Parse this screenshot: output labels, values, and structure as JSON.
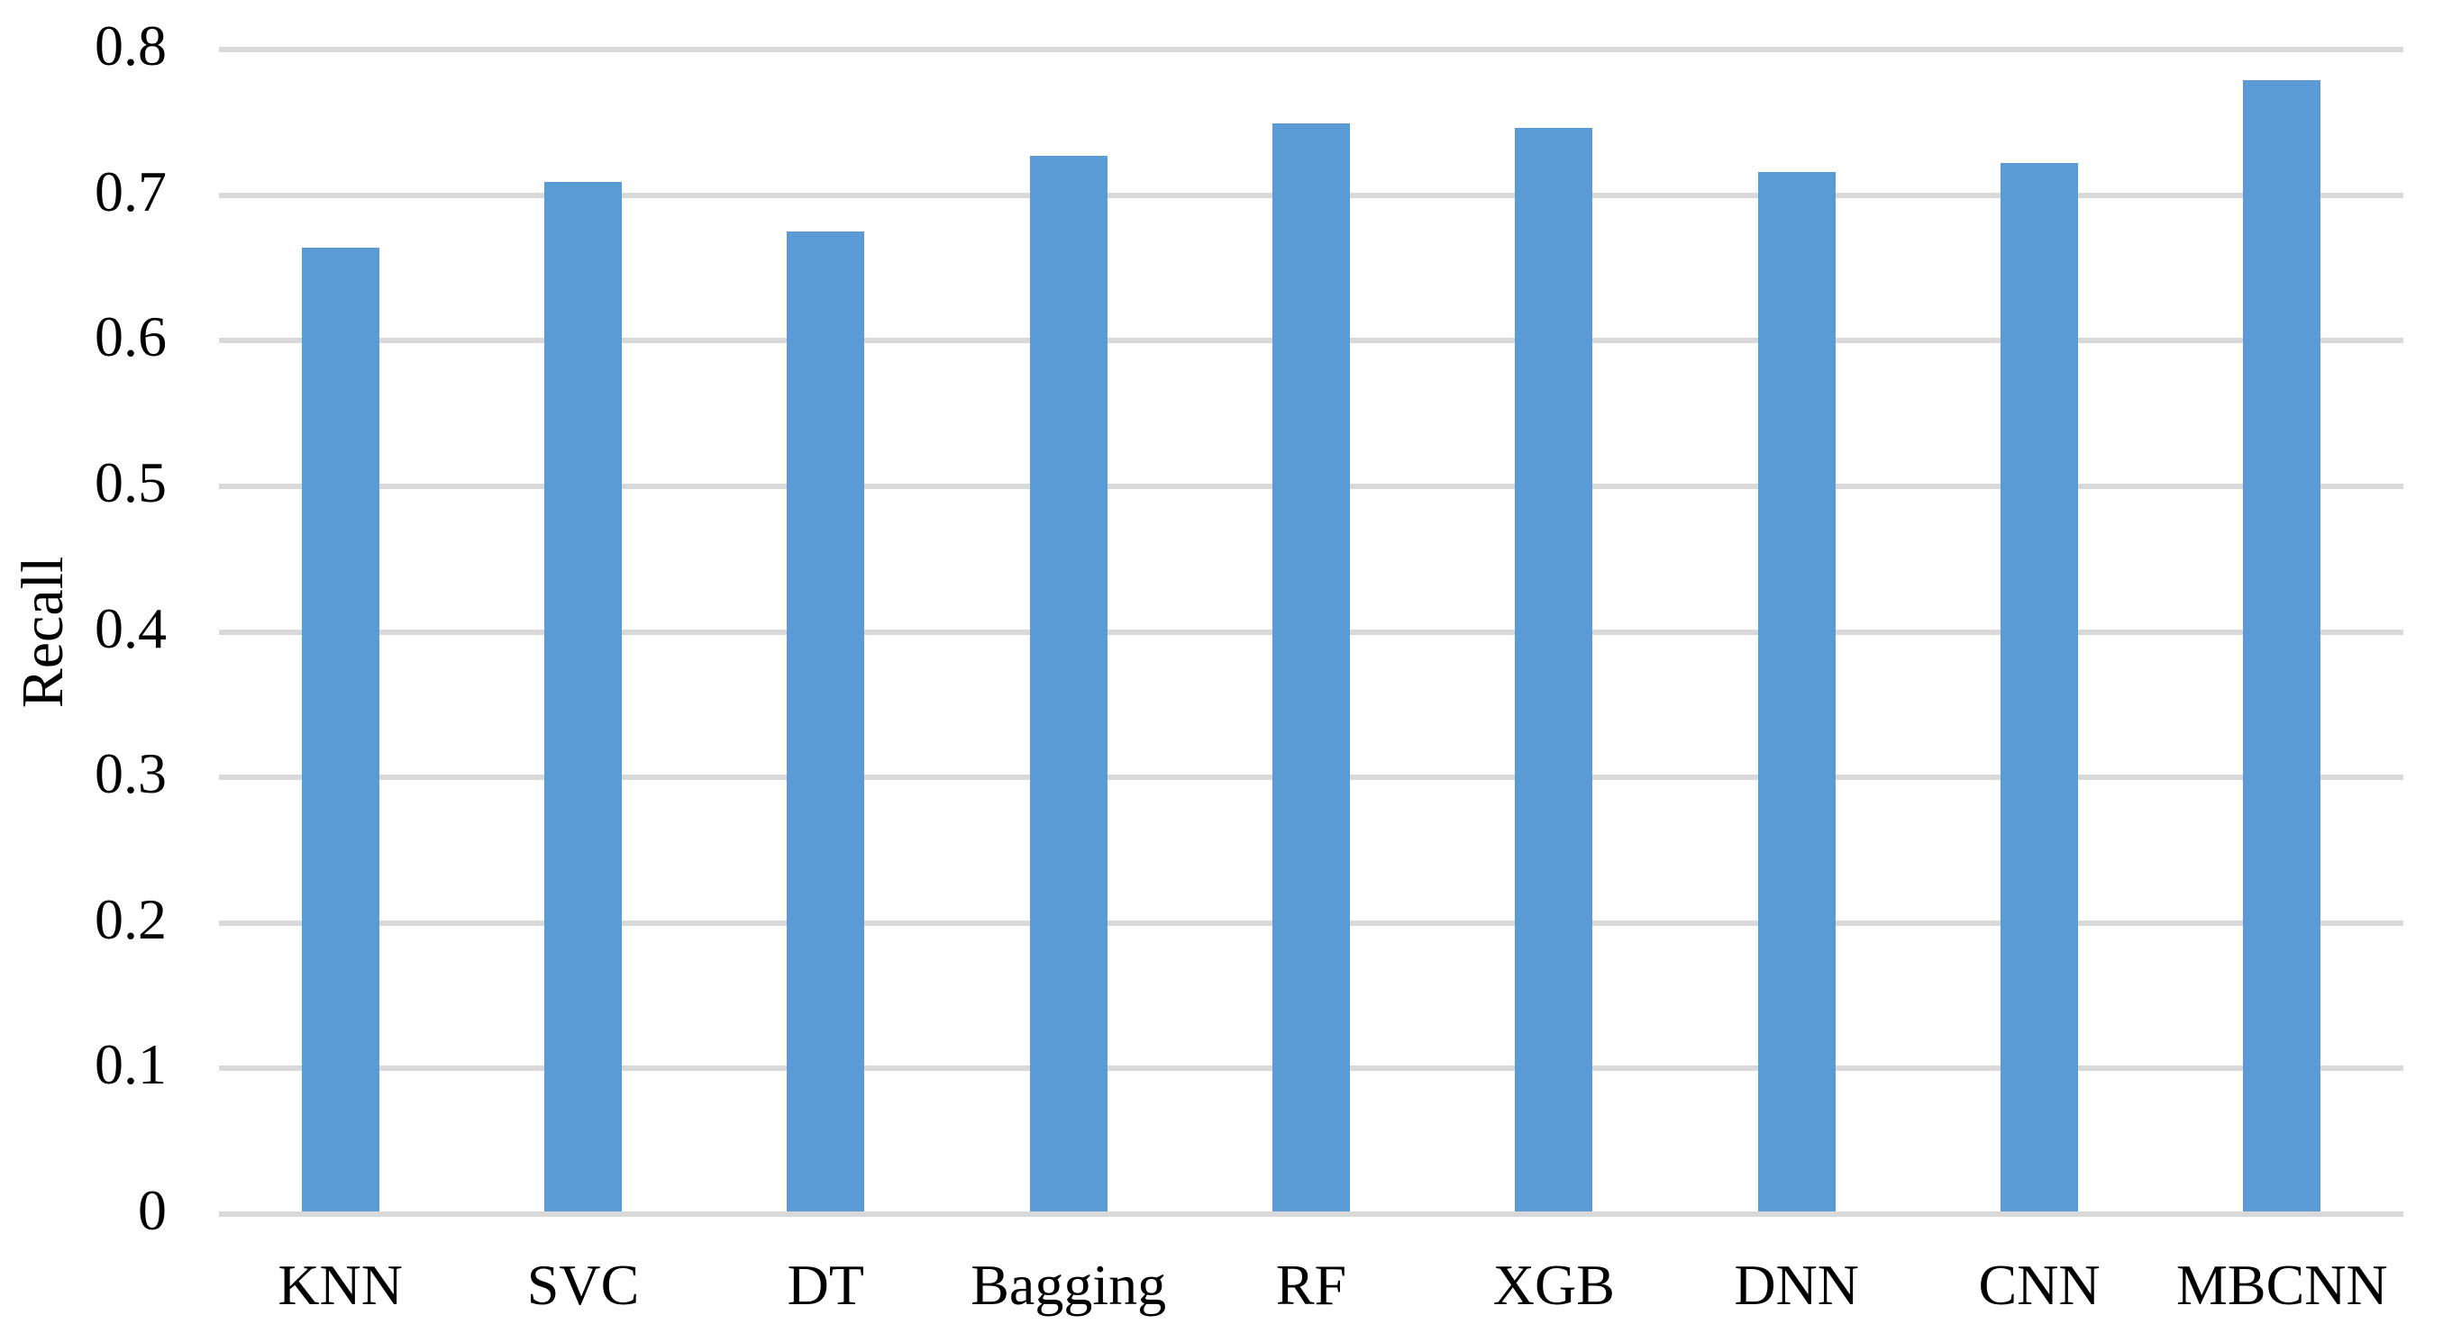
{
  "chart_data": {
    "type": "bar",
    "title": "",
    "xlabel": "",
    "ylabel": "Recall",
    "categories": [
      "KNN",
      "SVC",
      "DT",
      "Bagging",
      "RF",
      "XGB",
      "DNN",
      "CNN",
      "MBCNN"
    ],
    "values": [
      0.664,
      0.709,
      0.675,
      0.727,
      0.749,
      0.746,
      0.716,
      0.722,
      0.779
    ],
    "ylim": [
      0,
      0.8
    ],
    "ytick_step": 0.1,
    "ytick_labels": [
      "0",
      "0.1",
      "0.2",
      "0.3",
      "0.4",
      "0.5",
      "0.6",
      "0.7",
      "0.8"
    ],
    "grid": true,
    "legend": "none",
    "bar_color": "#5B9BD5",
    "gridline_color": "#D9D9D9",
    "text_color": "#000000",
    "background_color": "#FFFFFF"
  }
}
